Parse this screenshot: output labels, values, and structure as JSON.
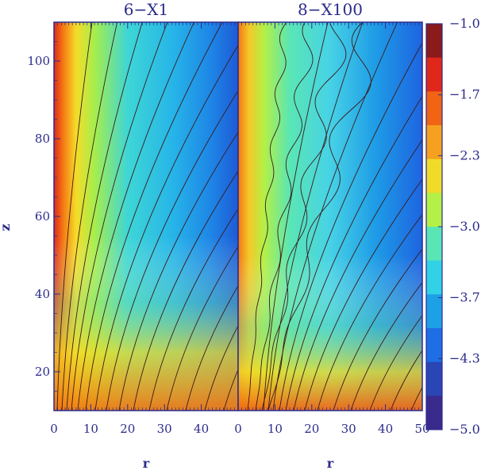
{
  "chart_data": {
    "type": "heatmap",
    "panels": [
      {
        "title": "6−X1",
        "xlabel": "r",
        "ylabel": "z",
        "xlim": [
          0,
          50
        ],
        "ylim": [
          10,
          110
        ],
        "xticks": [
          "0",
          "10",
          "20",
          "30",
          "40"
        ],
        "yticks": [
          "20",
          "40",
          "60",
          "80",
          "100"
        ]
      },
      {
        "title": "8−X100",
        "xlabel": "r",
        "xlim": [
          0,
          50
        ],
        "ylim": [
          10,
          110
        ],
        "xticks": [
          "0",
          "10",
          "20",
          "30",
          "40",
          "50"
        ]
      }
    ],
    "colorbar": {
      "range": [
        -5.0,
        -1.0
      ],
      "ticks": [
        "−1.0",
        "−1.7",
        "−2.3",
        "−3.0",
        "−3.7",
        "−4.3",
        "−5.0"
      ],
      "tick_values": [
        -1.0,
        -1.7,
        -2.3,
        -3.0,
        -3.7,
        -4.3,
        -5.0
      ],
      "colors": [
        "#8b1a1a",
        "#e0281a",
        "#f06414",
        "#f5a01e",
        "#f0dc28",
        "#b4f046",
        "#5ae6b4",
        "#32d2e6",
        "#1ea0e6",
        "#1e6ee6",
        "#2a46b4",
        "#3a2a8c"
      ]
    }
  }
}
